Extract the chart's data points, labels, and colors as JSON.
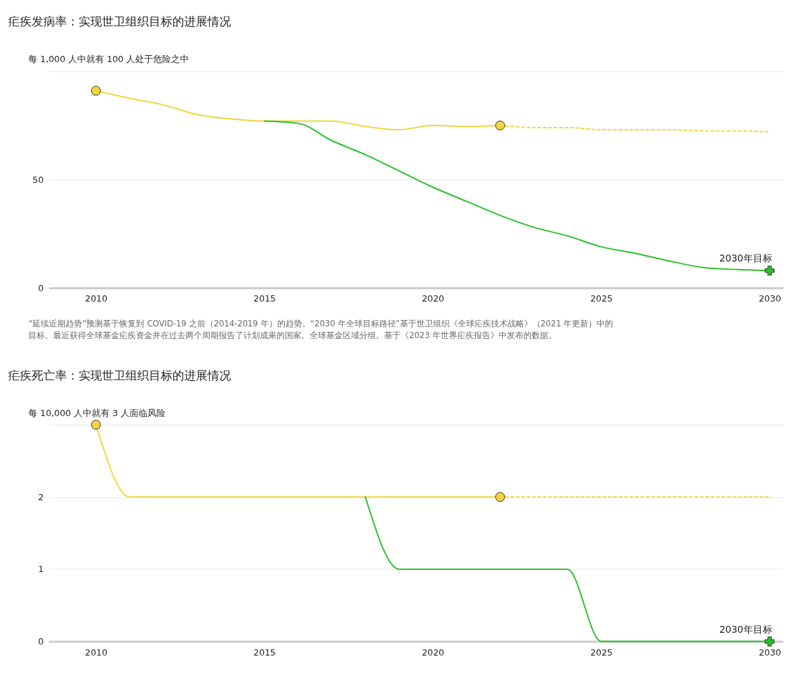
{
  "chart_data": [
    {
      "type": "line",
      "title": "疟疾发病率：实现世卫组织目标的进展情况",
      "ylabel": "每 1,000 人中就有 100 人处于危险之中",
      "xlim": [
        2008.6,
        2030.4
      ],
      "xticks": [
        2010,
        2015,
        2020,
        2025,
        2030
      ],
      "ylim": [
        0,
        100
      ],
      "yticks": [
        0,
        50,
        {
          "value": 100,
          "label": null
        }
      ],
      "grid": "y",
      "series": [
        {
          "type": "line",
          "color": "#f2d63b",
          "line_style": "solid",
          "x": [
            2010,
            2011,
            2012,
            2013,
            2014,
            2015,
            2016,
            2017,
            2018,
            2019,
            2020,
            2021,
            2022
          ],
          "values": [
            91,
            87.5,
            84.5,
            80,
            78,
            77,
            77,
            77,
            74.5,
            73,
            75,
            74.5,
            75
          ]
        },
        {
          "type": "line",
          "color": "#f2d63b",
          "line_style": "dashed",
          "x": [
            2022,
            2023,
            2024,
            2025,
            2026,
            2027,
            2028,
            2029,
            2030
          ],
          "values": [
            75,
            74,
            74,
            73,
            73,
            73,
            72.5,
            72.5,
            72
          ]
        },
        {
          "type": "line",
          "color": "#2bc12b",
          "line_style": "solid",
          "x": [
            2015,
            2016,
            2017,
            2018,
            2019,
            2020,
            2021,
            2022,
            2023,
            2024,
            2025,
            2026,
            2027,
            2028,
            2029,
            2030
          ],
          "values": [
            77,
            76,
            68,
            61.5,
            54,
            46.5,
            40,
            33.5,
            28,
            24,
            19,
            16,
            12.5,
            9.5,
            8.5,
            8
          ]
        },
        {
          "type": "scatter",
          "color": "#f2d63b",
          "marker": "circle",
          "x": [
            2010,
            2022
          ],
          "values": [
            91,
            75
          ]
        },
        {
          "type": "scatter",
          "color": "#2bc12b",
          "marker": "cross",
          "x": [
            2030
          ],
          "values": [
            8
          ]
        }
      ],
      "annotations": [
        {
          "text": "2030年目标",
          "x": 2030,
          "y": 8
        },
        "“延续近期趋势”预测基于恢复到 COVID-19 之前（2014-2019 年）的趋势。“2030 年全球目标路径”基于世卫组织《全球疟疾技术战略》（2021 年更新）中的目标。最近获得全球基金疟疾资金并在过去两个周期报告了计划成果的国家。全球基金区域分组。基于《2023 年世界疟疾报告》中发布的数据。"
      ]
    },
    {
      "type": "line",
      "title": "疟疾死亡率：实现世卫组织目标的进展情况",
      "ylabel": "每 10,000 人中就有 3 人面临风险",
      "xlim": [
        2008.6,
        2030.4
      ],
      "xticks": [
        2010,
        2015,
        2020,
        2025,
        2030
      ],
      "ylim": [
        0,
        3
      ],
      "yticks": [
        0,
        1,
        2,
        {
          "value": 3,
          "label": null
        }
      ],
      "grid": "y",
      "series": [
        {
          "type": "line",
          "color": "#f2d63b",
          "line_style": "solid",
          "x": [
            2010,
            2011,
            2012,
            2013,
            2014,
            2015,
            2016,
            2017,
            2018,
            2019,
            2020,
            2021,
            2022
          ],
          "values": [
            3,
            2,
            2,
            2,
            2,
            2,
            2,
            2,
            2,
            2,
            2,
            2,
            2
          ]
        },
        {
          "type": "line",
          "color": "#f2d63b",
          "line_style": "dashed",
          "x": [
            2022,
            2023,
            2024,
            2025,
            2026,
            2027,
            2028,
            2029,
            2030
          ],
          "values": [
            2,
            2,
            2,
            2,
            2,
            2,
            2,
            2,
            2
          ]
        },
        {
          "type": "line",
          "color": "#2bc12b",
          "line_style": "solid",
          "x": [
            2018,
            2019,
            2020,
            2021,
            2022,
            2023,
            2024,
            2025,
            2026,
            2027,
            2028,
            2029,
            2030
          ],
          "values": [
            2,
            1,
            1,
            1,
            1,
            1,
            1,
            0,
            0,
            0,
            0,
            0,
            0
          ]
        },
        {
          "type": "scatter",
          "color": "#f2d63b",
          "marker": "circle",
          "x": [
            2010,
            2022
          ],
          "values": [
            3,
            2
          ]
        },
        {
          "type": "scatter",
          "color": "#2bc12b",
          "marker": "cross",
          "x": [
            2030
          ],
          "values": [
            0
          ]
        }
      ],
      "annotations": [
        {
          "text": "2030年目标",
          "x": 2030,
          "y": 0
        }
      ]
    }
  ]
}
